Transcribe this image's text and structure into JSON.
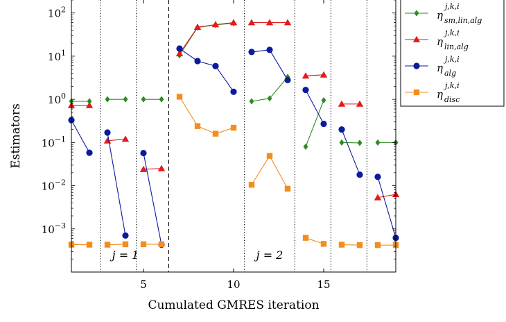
{
  "chart_data": {
    "type": "line",
    "xlabel": "Cumulated GMRES iteration",
    "ylabel": "Estimators",
    "yscale": "log",
    "xlim": [
      1,
      19
    ],
    "ylim": [
      0.0001,
      200
    ],
    "x_ticks": [
      5,
      10,
      15
    ],
    "y_ticks": [
      0.001,
      0.01,
      0.1,
      1,
      10,
      100
    ],
    "y_tick_labels": [
      {
        "base": "10",
        "exp": "−3"
      },
      {
        "base": "10",
        "exp": "−2"
      },
      {
        "base": "10",
        "exp": "−1"
      },
      {
        "base": "10",
        "exp": "0"
      },
      {
        "base": "10",
        "exp": "1"
      },
      {
        "base": "10",
        "exp": "2"
      }
    ],
    "dotted_separators": [
      2.6,
      4.6,
      10.6,
      13.4,
      15.4,
      17.4
    ],
    "dashed_separators": [
      6.4
    ],
    "annotations": [
      {
        "text": "j = 1",
        "x": 4.0,
        "y": 0.00025
      },
      {
        "text": "j = 2",
        "x": 12.0,
        "y": 0.00025
      }
    ],
    "legend_position": "top-right",
    "series": [
      {
        "name": "η_sm,lin,alg^j,k,i",
        "sym": "η",
        "sup": "j,k,i",
        "sub": "sm,lin,alg",
        "color": "#2e8b22",
        "marker": "diamond",
        "segments": [
          [
            [
              1,
              0.9
            ],
            [
              2,
              0.9
            ]
          ],
          [
            [
              3,
              1.0
            ],
            [
              4,
              1.0
            ]
          ],
          [
            [
              5,
              1.0
            ],
            [
              6,
              1.0
            ]
          ],
          [
            [
              7,
              10.5
            ],
            [
              8,
              46
            ],
            [
              9,
              53
            ],
            [
              10,
              58
            ]
          ],
          [
            [
              11,
              0.9
            ],
            [
              12,
              1.05
            ],
            [
              13,
              3.3
            ]
          ],
          [
            [
              14,
              0.08
            ],
            [
              15,
              0.95
            ]
          ],
          [
            [
              16,
              0.1
            ],
            [
              17,
              0.098
            ]
          ],
          [
            [
              18,
              0.1
            ],
            [
              19,
              0.1
            ]
          ]
        ]
      },
      {
        "name": "η_lin,alg^j,k,i",
        "sym": "η",
        "sup": "j,k,i",
        "sub": "lin,alg",
        "color": "#e41a1c",
        "marker": "triangle",
        "segments": [
          [
            [
              1,
              0.72
            ],
            [
              2,
              0.72
            ]
          ],
          [
            [
              3,
              0.11
            ],
            [
              4,
              0.12
            ]
          ],
          [
            [
              5,
              0.024
            ],
            [
              6,
              0.025
            ]
          ],
          [
            [
              7,
              11.5
            ],
            [
              8,
              47
            ],
            [
              9,
              54
            ],
            [
              10,
              60
            ]
          ],
          [
            [
              11,
              60
            ],
            [
              12,
              60
            ],
            [
              13,
              60
            ]
          ],
          [
            [
              14,
              3.5
            ],
            [
              15,
              3.7
            ]
          ],
          [
            [
              16,
              0.78
            ],
            [
              17,
              0.78
            ]
          ],
          [
            [
              18,
              0.0053
            ],
            [
              19,
              0.0063
            ]
          ]
        ]
      },
      {
        "name": "η_alg^j,k,i",
        "sym": "η",
        "sup": "j,k,i",
        "sub": "alg",
        "color": "#0b1a9e",
        "marker": "circle",
        "segments": [
          [
            [
              1,
              0.33
            ],
            [
              2,
              0.058
            ]
          ],
          [
            [
              3,
              0.17
            ],
            [
              4,
              0.0007
            ]
          ],
          [
            [
              5,
              0.057
            ],
            [
              6,
              0.00043
            ]
          ],
          [
            [
              7,
              15
            ],
            [
              8,
              7.7
            ],
            [
              9,
              5.9
            ],
            [
              10,
              1.5
            ]
          ],
          [
            [
              11,
              12.5
            ],
            [
              12,
              14
            ],
            [
              13,
              2.8
            ]
          ],
          [
            [
              14,
              1.65
            ],
            [
              15,
              0.27
            ]
          ],
          [
            [
              16,
              0.2
            ],
            [
              17,
              0.018
            ]
          ],
          [
            [
              18,
              0.016
            ],
            [
              19,
              0.00062
            ]
          ]
        ]
      },
      {
        "name": "η_disc^j,k,i",
        "sym": "η",
        "sup": "j,k,i",
        "sub": "disc",
        "color": "#f28e1c",
        "marker": "square",
        "segments": [
          [
            [
              1,
              0.00043
            ],
            [
              2,
              0.00043
            ]
          ],
          [
            [
              3,
              0.00043
            ],
            [
              4,
              0.00044
            ]
          ],
          [
            [
              5,
              0.00044
            ],
            [
              6,
              0.00044
            ]
          ],
          [
            [
              7,
              1.15
            ],
            [
              8,
              0.24
            ],
            [
              9,
              0.16
            ],
            [
              10,
              0.22
            ]
          ],
          [
            [
              11,
              0.0105
            ],
            [
              12,
              0.049
            ],
            [
              13,
              0.0085
            ]
          ],
          [
            [
              14,
              0.00062
            ],
            [
              15,
              0.00045
            ]
          ],
          [
            [
              16,
              0.00043
            ],
            [
              17,
              0.00042
            ]
          ],
          [
            [
              18,
              0.00042
            ],
            [
              19,
              0.00042
            ]
          ]
        ]
      }
    ]
  }
}
